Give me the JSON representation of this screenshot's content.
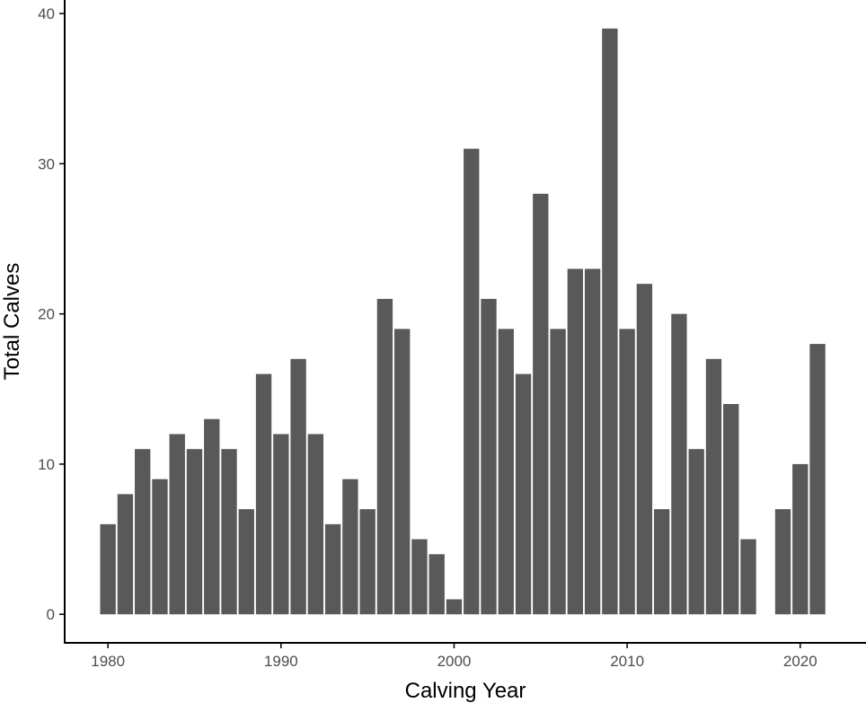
{
  "chart_data": {
    "type": "bar",
    "title": "",
    "xlabel": "Calving Year",
    "ylabel": "Total Calves",
    "x": [
      1980,
      1981,
      1982,
      1983,
      1984,
      1985,
      1986,
      1987,
      1988,
      1989,
      1990,
      1991,
      1992,
      1993,
      1994,
      1995,
      1996,
      1997,
      1998,
      1999,
      2000,
      2001,
      2002,
      2003,
      2004,
      2005,
      2006,
      2007,
      2008,
      2009,
      2010,
      2011,
      2012,
      2013,
      2014,
      2015,
      2016,
      2017,
      2019,
      2020,
      2021
    ],
    "values": [
      6,
      8,
      11,
      9,
      12,
      11,
      13,
      11,
      7,
      16,
      12,
      17,
      12,
      6,
      9,
      7,
      21,
      19,
      5,
      4,
      1,
      31,
      21,
      19,
      16,
      28,
      19,
      23,
      23,
      39,
      19,
      22,
      7,
      20,
      11,
      17,
      14,
      5,
      7,
      10,
      18
    ],
    "xlim": [
      1977.5,
      2023.8
    ],
    "ylim": [
      -1.9,
      40.9
    ],
    "x_ticks": [
      "1980",
      "1990",
      "2000",
      "2010",
      "2020"
    ],
    "y_ticks": [
      "0",
      "10",
      "20",
      "30",
      "40"
    ],
    "grid": false,
    "legend": "none",
    "bar_color": "#595959",
    "axis_color": "#000000"
  }
}
